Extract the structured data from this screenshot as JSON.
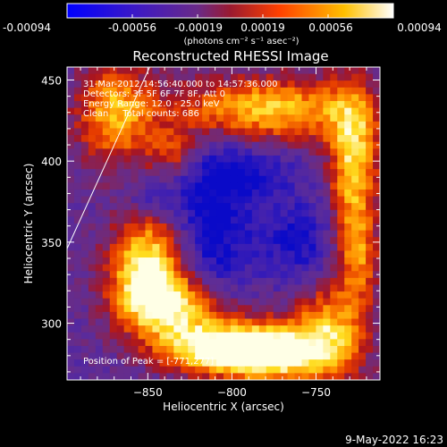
{
  "colorbar": {
    "tick_labels": [
      "-0.00094",
      "-0.00056",
      "-0.00019",
      "0.00019",
      "0.00056",
      "0.00094"
    ],
    "units": "(photons cm⁻² s⁻¹ asec⁻²)",
    "range": [
      -0.00094,
      0.00094
    ],
    "colors": [
      "#0000ff",
      "#4a1fb0",
      "#7a3aa0",
      "#b81d1d",
      "#ff6a00",
      "#ffd400",
      "#ffffff"
    ]
  },
  "chart_data": {
    "type": "heatmap",
    "title": "Reconstructed RHESSI Image",
    "xlabel": "Heliocentric X (arcsec)",
    "ylabel": "Heliocentric Y (arcsec)",
    "xlim": [
      -898,
      -712
    ],
    "ylim": [
      265,
      458
    ],
    "x_ticks": [
      -850,
      -800,
      -750
    ],
    "y_ticks": [
      300,
      350,
      400,
      450
    ],
    "info_lines": [
      "31-Mar-2012 14:56:40.000 to 14:57:36.000",
      "Detectors: 3F 5F 6F 7F 8F, Att 0",
      "Energy Range: 12.0 - 25.0 keV",
      "Clean     Total counts: 686"
    ],
    "peak_label": "Position of Peak = [-771,277]",
    "peak": [
      -771,
      277
    ],
    "limb_line": [
      [
        -898,
        346
      ],
      [
        -848,
        460
      ]
    ],
    "grid": {
      "cols": 44,
      "rows": 46
    },
    "sources": [
      {
        "x": -850,
        "y": 335,
        "sx": 16,
        "sy": 22,
        "amp": 1.0
      },
      {
        "x": -833,
        "y": 310,
        "sx": 22,
        "sy": 14,
        "amp": 0.85
      },
      {
        "x": -775,
        "y": 282,
        "sx": 30,
        "sy": 14,
        "amp": 1.05
      },
      {
        "x": -812,
        "y": 285,
        "sx": 22,
        "sy": 10,
        "amp": 0.8
      },
      {
        "x": -742,
        "y": 300,
        "sx": 14,
        "sy": 20,
        "amp": 0.55
      },
      {
        "x": -728,
        "y": 400,
        "sx": 10,
        "sy": 30,
        "amp": 0.85
      },
      {
        "x": -780,
        "y": 432,
        "sx": 42,
        "sy": 14,
        "amp": 0.8
      },
      {
        "x": -870,
        "y": 430,
        "sx": 16,
        "sy": 22,
        "amp": 0.7
      },
      {
        "x": -835,
        "y": 405,
        "sx": 12,
        "sy": 10,
        "amp": 0.45
      },
      {
        "x": -725,
        "y": 340,
        "sx": 9,
        "sy": 22,
        "amp": 0.55
      }
    ],
    "sinks": [
      {
        "x": -812,
        "y": 355,
        "sx": 18,
        "sy": 40,
        "amp": 0.55
      },
      {
        "x": -760,
        "y": 350,
        "sx": 15,
        "sy": 18,
        "amp": 0.45
      },
      {
        "x": -790,
        "y": 392,
        "sx": 22,
        "sy": 12,
        "amp": 0.35
      },
      {
        "x": -848,
        "y": 378,
        "sx": 10,
        "sy": 8,
        "amp": 0.3
      }
    ]
  },
  "footer": {
    "date": "9-May-2022 16:23"
  }
}
